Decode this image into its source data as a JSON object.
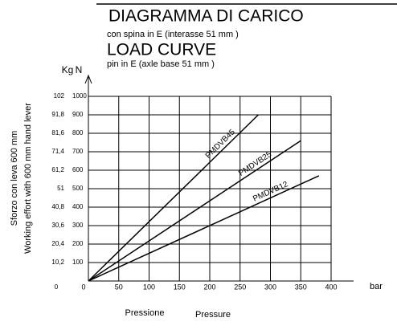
{
  "chart_data": {
    "type": "line",
    "title": "DIAGRAMMA  DI  CARICO",
    "subtitle": "con spina in E (interasse 51 mm )",
    "title2": "LOAD CURVE",
    "subtitle2": "pin in E (axle base 51 mm )",
    "y_unit": "N",
    "y2_unit": "Kg",
    "x_unit": "bar",
    "x_label": "Pressione",
    "x_label2": "Pressure",
    "y_label": "Sforzo con leva 600 mm",
    "y_label2": "Working effort with 600 mm hand lever",
    "xlim": [
      0,
      400
    ],
    "xticks": [
      0,
      50,
      100,
      150,
      200,
      250,
      300,
      350,
      400
    ],
    "ylim": [
      0,
      1000
    ],
    "yticks": [
      100,
      200,
      300,
      400,
      500,
      600,
      700,
      800,
      900,
      1000
    ],
    "y2lim": [
      0,
      102
    ],
    "y2ticks": [
      0,
      {
        "value": 10.2,
        "label": "10,2"
      },
      {
        "value": 20.4,
        "label": "20,4"
      },
      {
        "value": 30.6,
        "label": "30,6"
      },
      {
        "value": 40.8,
        "label": "40,8"
      },
      51,
      {
        "value": 61.2,
        "label": "61,2"
      },
      {
        "value": 71.4,
        "label": "71,4"
      },
      {
        "value": 81.6,
        "label": "81,6"
      },
      {
        "value": 91.8,
        "label": "91,8"
      },
      102
    ],
    "grid": true,
    "series": [
      {
        "name": "PMDVB45",
        "color": "#000000",
        "x": [
          0,
          280
        ],
        "values": [
          0,
          900
        ]
      },
      {
        "name": "PMDVB25",
        "color": "#000000",
        "x": [
          0,
          350
        ],
        "values": [
          0,
          760
        ]
      },
      {
        "name": "PMDVB12",
        "color": "#000000",
        "x": [
          0,
          380
        ],
        "values": [
          0,
          570
        ]
      }
    ]
  }
}
